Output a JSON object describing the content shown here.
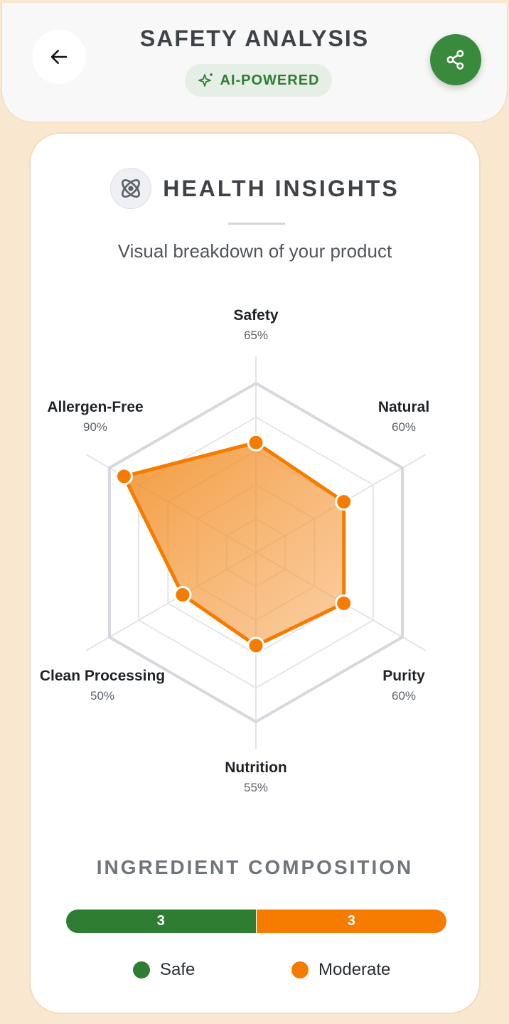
{
  "header": {
    "title": "SAFETY ANALYSIS",
    "badge": "AI-POWERED",
    "back_icon": "arrow-left-icon",
    "share_icon": "share-icon"
  },
  "card": {
    "title": "HEALTH INSIGHTS",
    "subtitle": "Visual breakdown of your product",
    "icon": "atom-icon"
  },
  "chart_data": {
    "type": "radar",
    "categories": [
      "Safety",
      "Natural",
      "Purity",
      "Nutrition",
      "Clean Processing",
      "Allergen-Free"
    ],
    "value_labels": [
      "65%",
      "60%",
      "60%",
      "55%",
      "50%",
      "90%"
    ],
    "values": [
      65,
      60,
      60,
      55,
      50,
      90
    ],
    "range": [
      0,
      100
    ],
    "grid_levels": [
      20,
      40,
      60,
      80,
      100
    ],
    "color": "#f57c00"
  },
  "composition": {
    "title": "INGREDIENT COMPOSITION",
    "segments": [
      {
        "label": "Safe",
        "count": "3",
        "color": "#2e7d32"
      },
      {
        "label": "Moderate",
        "count": "3",
        "color": "#f57c00"
      }
    ]
  }
}
